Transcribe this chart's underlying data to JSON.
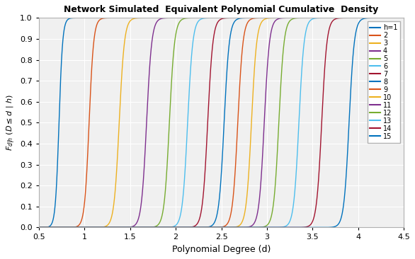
{
  "title": "Network Simulated  Equivalent Polynomial Cumulative  Density",
  "xlabel": "Polynomial Degree (d)",
  "ylabel": "F_{d|h} (D < d | h)",
  "xlim": [
    0.5,
    4.5
  ],
  "ylim": [
    0,
    1
  ],
  "xticks": [
    0.5,
    1.0,
    1.5,
    2.0,
    2.5,
    3.0,
    3.5,
    4.0,
    4.5
  ],
  "yticks": [
    0.0,
    0.1,
    0.2,
    0.3,
    0.4,
    0.5,
    0.6,
    0.7,
    0.8,
    0.9,
    1.0
  ],
  "h_values": [
    1,
    2,
    3,
    4,
    5,
    6,
    7,
    8,
    9,
    10,
    11,
    12,
    13,
    14,
    15
  ],
  "curve_centers": [
    0.72,
    1.05,
    1.38,
    1.68,
    1.93,
    2.13,
    2.35,
    2.53,
    2.68,
    2.83,
    2.97,
    3.13,
    3.35,
    3.6,
    3.9
  ],
  "curve_steepness": [
    50,
    40,
    35,
    35,
    35,
    35,
    35,
    35,
    35,
    35,
    35,
    35,
    35,
    35,
    35
  ],
  "colors": [
    "#0072bd",
    "#d95319",
    "#edb120",
    "#7e2f8e",
    "#77ac30",
    "#4dbeee",
    "#a2142f",
    "#0072bd",
    "#d95319",
    "#edb120",
    "#7e2f8e",
    "#77ac30",
    "#4dbeee",
    "#a2142f",
    "#0072bd"
  ],
  "legend_labels": [
    "h=1",
    "2",
    "3",
    "4",
    "5",
    "6",
    "7",
    "8",
    "9",
    "10",
    "11",
    "12",
    "13",
    "14",
    "15"
  ],
  "bg_color": "#f0f0f0",
  "grid_color": "#ffffff",
  "figure_bg": "#ffffff"
}
